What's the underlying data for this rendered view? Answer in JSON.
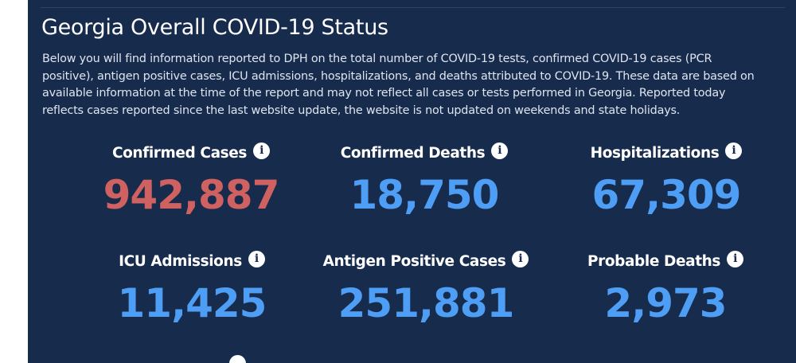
{
  "header": {
    "title": "Georgia Overall COVID-19 Status",
    "description": "Below you will find information reported to DPH on the total number of COVID-19 tests, confirmed COVID-19 cases (PCR positive), antigen positive cases, ICU admissions, hospitalizations, and deaths attributed to COVID-19. These data are based on available information at the time of the report and may not reflect all cases or tests performed in Georgia. Reported today reflects cases reported since the last website update, the website is not updated on weekends and state holidays."
  },
  "stats": [
    {
      "label": "Confirmed Cases",
      "value": "942,887",
      "color": "#d06161"
    },
    {
      "label": "Confirmed Deaths",
      "value": "18,750",
      "color": "#4d9ef4"
    },
    {
      "label": "Hospitalizations",
      "value": "67,309",
      "color": "#4d9ef4"
    },
    {
      "label": "ICU Admissions",
      "value": "11,425",
      "color": "#4d9ef4"
    },
    {
      "label": "Antigen Positive Cases",
      "value": "251,881",
      "color": "#4d9ef4"
    },
    {
      "label": "Probable Deaths",
      "value": "2,973",
      "color": "#4d9ef4"
    }
  ],
  "icons": {
    "info": "i"
  },
  "theme": {
    "panel_background": "#172b4d",
    "accent_red": "#d06161",
    "accent_blue": "#4d9ef4"
  }
}
